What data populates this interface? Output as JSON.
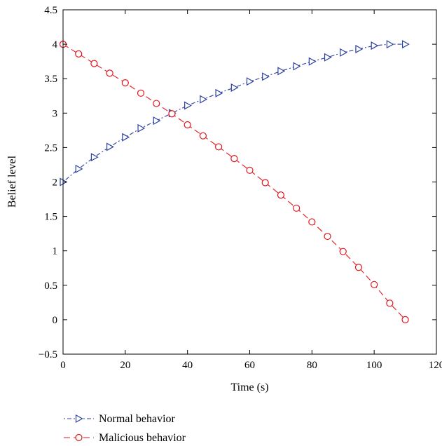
{
  "chart_data": {
    "type": "line",
    "xlabel": "Time (s)",
    "ylabel": "Belief level",
    "xlim": [
      0,
      120
    ],
    "ylim": [
      -0.5,
      4.5
    ],
    "xticks": [
      0,
      20,
      40,
      60,
      80,
      100,
      120
    ],
    "yticks": [
      -0.5,
      0,
      0.5,
      1,
      1.5,
      2,
      2.5,
      3,
      3.5,
      4,
      4.5
    ],
    "ytick_labels": [
      "−0.5",
      "0",
      "0.5",
      "1",
      "1.5",
      "2",
      "2.5",
      "3",
      "3.5",
      "4",
      "4.5"
    ],
    "grid": false,
    "legend_position": "bottom-left, below plot",
    "series": [
      {
        "name": "Normal behavior",
        "color": "#2b3f9e",
        "line_style": "dotted-dash",
        "marker": "triangle-right",
        "x": [
          0,
          5,
          10,
          15,
          20,
          25,
          30,
          35,
          40,
          45,
          50,
          55,
          60,
          65,
          70,
          75,
          80,
          85,
          90,
          95,
          100,
          105,
          110
        ],
        "values": [
          2.0,
          2.19,
          2.36,
          2.51,
          2.65,
          2.78,
          2.89,
          3.0,
          3.11,
          3.2,
          3.29,
          3.37,
          3.46,
          3.53,
          3.61,
          3.68,
          3.75,
          3.81,
          3.88,
          3.93,
          3.98,
          4.0,
          4.0
        ]
      },
      {
        "name": "Malicious behavior",
        "color": "#e3141c",
        "line_style": "dashed",
        "marker": "circle",
        "x": [
          0,
          5,
          10,
          15,
          20,
          25,
          30,
          35,
          40,
          45,
          50,
          55,
          60,
          65,
          70,
          75,
          80,
          85,
          90,
          95,
          100,
          105,
          110
        ],
        "values": [
          4.0,
          3.86,
          3.72,
          3.58,
          3.44,
          3.29,
          3.14,
          2.99,
          2.83,
          2.67,
          2.51,
          2.34,
          2.17,
          1.99,
          1.81,
          1.62,
          1.42,
          1.21,
          0.99,
          0.76,
          0.51,
          0.24,
          0.0
        ]
      }
    ]
  }
}
